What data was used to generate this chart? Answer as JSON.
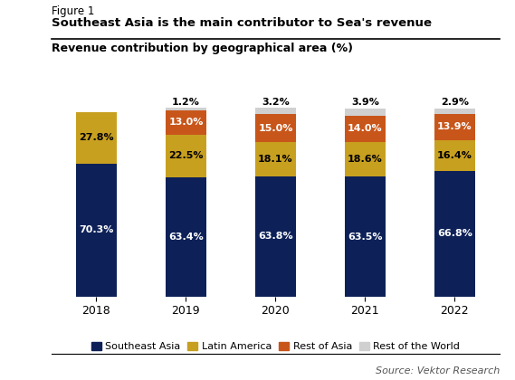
{
  "years": [
    "2018",
    "2019",
    "2020",
    "2021",
    "2022"
  ],
  "southeast_asia": [
    70.3,
    63.4,
    63.8,
    63.5,
    66.8
  ],
  "latin_america": [
    27.8,
    22.5,
    18.1,
    18.6,
    16.4
  ],
  "rest_of_asia": [
    0.0,
    13.0,
    15.0,
    14.0,
    13.9
  ],
  "rest_of_world": [
    0.0,
    1.2,
    3.2,
    3.9,
    2.9
  ],
  "colors": {
    "southeast_asia": "#0d2158",
    "latin_america": "#c8a020",
    "rest_of_asia": "#c8561a",
    "rest_of_world": "#d0d0d0"
  },
  "labels": {
    "southeast_asia": "Southeast Asia",
    "latin_america": "Latin America",
    "rest_of_asia": "Rest of Asia",
    "rest_of_world": "Rest of the World"
  },
  "figure_label": "Figure 1",
  "title": "Southeast Asia is the main contributor to Sea's revenue",
  "chart_title": "Revenue contribution by geographical area (%)",
  "source": "Source: Vektor Research",
  "ylim": [
    0,
    107
  ],
  "bar_width": 0.45
}
